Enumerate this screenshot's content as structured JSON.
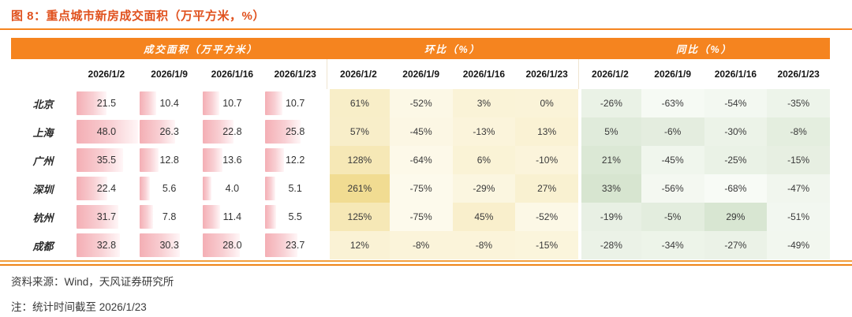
{
  "header": {
    "title": "图 8：重点城市新房成交面积（万平方米，%）"
  },
  "chart_data": {
    "type": "table",
    "title": "图 8：重点城市新房成交面积（万平方米，%）",
    "column_groups": [
      "成交面积（万平方米）",
      "环比（%）",
      "同比（%）"
    ],
    "dates": [
      "2026/1/2",
      "2026/1/9",
      "2026/1/16",
      "2026/1/23"
    ],
    "rows": [
      {
        "city": "北京",
        "area": [
          21.5,
          10.4,
          10.7,
          10.7
        ],
        "mom": [
          61,
          -52,
          3,
          0
        ],
        "yoy": [
          -26,
          -63,
          -54,
          -35
        ]
      },
      {
        "city": "上海",
        "area": [
          48.0,
          26.3,
          22.8,
          25.8
        ],
        "mom": [
          57,
          -45,
          -13,
          13
        ],
        "yoy": [
          5,
          -6,
          -30,
          -8
        ]
      },
      {
        "city": "广州",
        "area": [
          35.5,
          12.8,
          13.6,
          12.2
        ],
        "mom": [
          128,
          -64,
          6,
          -10
        ],
        "yoy": [
          21,
          -45,
          -25,
          -15
        ]
      },
      {
        "city": "深圳",
        "area": [
          22.4,
          5.6,
          4.0,
          5.1
        ],
        "mom": [
          261,
          -75,
          -29,
          27
        ],
        "yoy": [
          33,
          -56,
          -68,
          -47
        ]
      },
      {
        "city": "杭州",
        "area": [
          31.7,
          7.8,
          11.4,
          5.5
        ],
        "mom": [
          125,
          -75,
          45,
          -52
        ],
        "yoy": [
          -19,
          -5,
          29,
          -51
        ]
      },
      {
        "city": "成都",
        "area": [
          32.8,
          30.3,
          28.0,
          23.7
        ],
        "mom": [
          12,
          -8,
          -8,
          -15
        ],
        "yoy": [
          -28,
          -34,
          -27,
          -49
        ]
      }
    ],
    "bar_scale": {
      "min": 4.0,
      "max": 48.0
    },
    "heat_scales": {
      "mom": {
        "min": -75,
        "max": 261,
        "from": "#FDFAEC",
        "to": "#F1DC92"
      },
      "yoy": {
        "min": -68,
        "max": 33,
        "from": "#F8FBF6",
        "to": "#D7E5D0"
      }
    }
  },
  "colors": {
    "accent_orange": "#F5841F",
    "title_red": "#E0511E",
    "bar_pink_start": "#F4AEB4",
    "bar_pink_mid": "#F8CFD3",
    "bar_pink_end": "#FFF6F7"
  },
  "footer": {
    "source": "资料来源：Wind，天风证券研究所",
    "note": "注：统计时间截至 2026/1/23"
  }
}
